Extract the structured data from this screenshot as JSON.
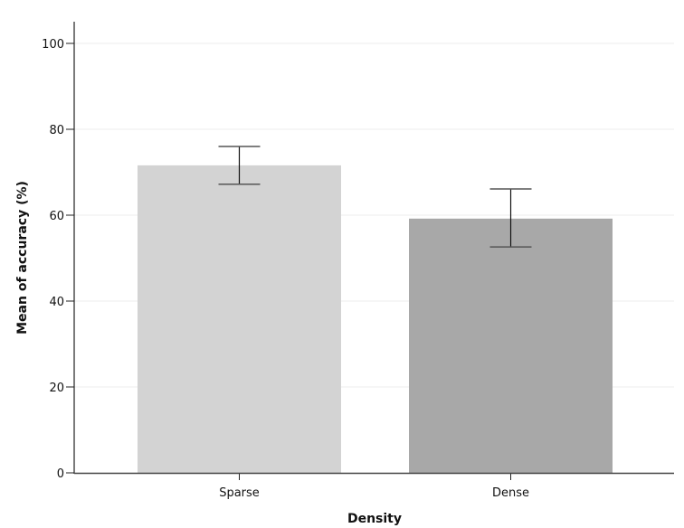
{
  "chart_data": {
    "type": "bar",
    "title": "",
    "xlabel": "Density",
    "ylabel": "Mean of accuracy (%)",
    "categories": [
      "Sparse",
      "Dense"
    ],
    "values": [
      71.6,
      59.2
    ],
    "error_bars": [
      {
        "category": "Sparse",
        "lower": 67.2,
        "upper": 76.0
      },
      {
        "category": "Dense",
        "lower": 52.6,
        "upper": 66.1
      }
    ],
    "bar_colors": [
      "#d3d3d3",
      "#a8a8a8"
    ],
    "ylim": [
      0,
      100
    ],
    "yticks": [
      0,
      20,
      40,
      60,
      80,
      100
    ],
    "grid": true,
    "legend": null
  }
}
